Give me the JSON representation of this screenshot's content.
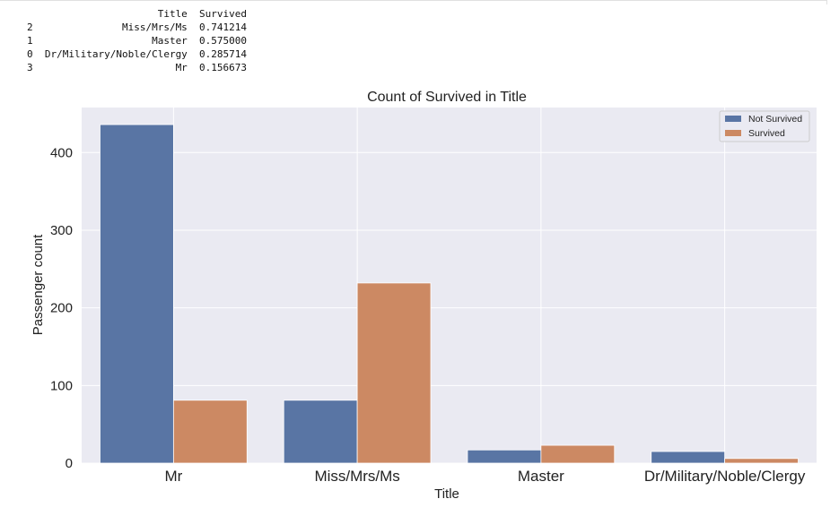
{
  "output_table": {
    "columns": [
      "",
      "Title",
      "Survived"
    ],
    "rows": [
      {
        "index": "2",
        "title": "Miss/Mrs/Ms",
        "survived": "0.741214"
      },
      {
        "index": "1",
        "title": "Master",
        "survived": "0.575000"
      },
      {
        "index": "0",
        "title": "Dr/Military/Noble/Clergy",
        "survived": "0.285714"
      },
      {
        "index": "3",
        "title": "Mr",
        "survived": "0.156673"
      }
    ]
  },
  "chart_data": {
    "type": "bar",
    "title": "Count of Survived in Title",
    "xlabel": "Title",
    "ylabel": "Passenger count",
    "categories": [
      "Mr",
      "Miss/Mrs/Ms",
      "Master",
      "Dr/Military/Noble/Clergy"
    ],
    "series": [
      {
        "name": "Not Survived",
        "values": [
          436,
          81,
          17,
          15
        ],
        "color": "#5975a4"
      },
      {
        "name": "Survived",
        "values": [
          81,
          232,
          23,
          6
        ],
        "color": "#cc8963"
      }
    ],
    "yticks": [
      0,
      100,
      200,
      300,
      400
    ],
    "ylim": [
      0,
      458
    ],
    "grid": true,
    "legend_position": "top-right",
    "background": "#eaeaf2"
  }
}
